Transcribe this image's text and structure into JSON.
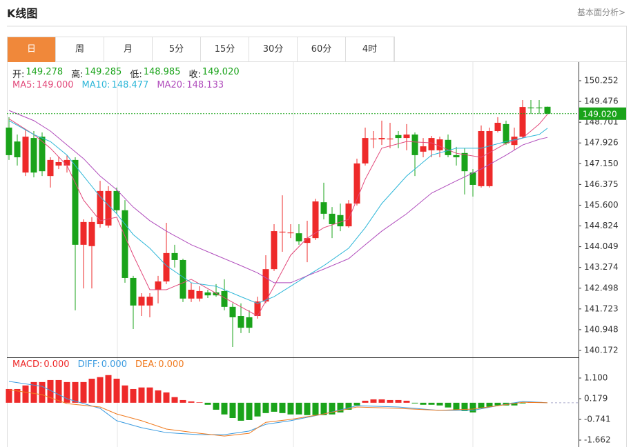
{
  "header": {
    "title": "K线图",
    "link": "基本面分析>"
  },
  "tabs": {
    "items": [
      "日",
      "周",
      "月",
      "5分",
      "15分",
      "30分",
      "60分",
      "4时"
    ],
    "selected": 0
  },
  "chart_data": [
    {
      "type": "candlestick",
      "quote": [
        {
          "label": "开:",
          "value": "149.278"
        },
        {
          "label": "高:",
          "value": "149.285"
        },
        {
          "label": "低:",
          "value": "148.985"
        },
        {
          "label": "收:",
          "value": "149.020"
        }
      ],
      "quote_color": "#1aa31a",
      "up_color": "#ee2a2a",
      "down_color": "#1aa31a",
      "last_price": "149.020",
      "last_price_color": "#1aa31a",
      "open": [
        148.5,
        147.98,
        146.82,
        148.11,
        148.16,
        146.69,
        147.08,
        147.08,
        147.29,
        144.12,
        144.07,
        144.89,
        144.84,
        146.13,
        145.41,
        142.88,
        141.85,
        141.85,
        142.44,
        142.75,
        143.81,
        143.55,
        142.11,
        142.11,
        142.34,
        142.34,
        142.39,
        141.8,
        141.46,
        141.41,
        141.46,
        142.0,
        143.21,
        144.58,
        144.55,
        144.55,
        144.19,
        144.37,
        145.71,
        145.28,
        145.23,
        144.81,
        145.66,
        147.16,
        148.06,
        148.06,
        148.06,
        148.22,
        148.11,
        148.24,
        147.6,
        147.65,
        147.65,
        148.04,
        147.47,
        147.55,
        146.82,
        146.31,
        146.31,
        148.37,
        148.63,
        147.85,
        148.16,
        149.25,
        149.25,
        149.278
      ],
      "high": [
        148.89,
        148.24,
        148.42,
        148.37,
        148.32,
        147.39,
        147.39,
        147.47,
        147.39,
        145.07,
        145.15,
        146.51,
        146.31,
        146.26,
        145.79,
        142.96,
        142.31,
        142.31,
        142.96,
        144.94,
        144.12,
        143.6,
        142.7,
        142.57,
        142.44,
        142.65,
        142.83,
        141.93,
        141.93,
        141.67,
        142.18,
        143.73,
        144.89,
        145.97,
        144.89,
        144.89,
        145.02,
        145.84,
        146.44,
        145.53,
        145.66,
        145.79,
        147.34,
        148.5,
        148.37,
        148.76,
        148.68,
        148.37,
        148.63,
        148.32,
        148.11,
        148.19,
        148.16,
        148.24,
        147.78,
        147.73,
        146.95,
        148.58,
        148.5,
        148.89,
        148.76,
        148.5,
        149.53,
        149.53,
        149.53,
        149.285
      ],
      "low": [
        147.29,
        147.08,
        146.69,
        146.64,
        146.69,
        146.26,
        146.95,
        146.82,
        141.67,
        142.49,
        142.49,
        144.76,
        144.76,
        145.28,
        142.7,
        140.97,
        141.46,
        141.41,
        141.93,
        142.65,
        143.27,
        141.98,
        141.98,
        142.0,
        142.13,
        142.18,
        141.67,
        140.3,
        140.82,
        140.82,
        141.36,
        141.93,
        143.14,
        143.86,
        144.37,
        144.12,
        143.47,
        144.3,
        145.07,
        144.37,
        144.63,
        144.76,
        145.59,
        147.08,
        147.73,
        147.85,
        147.73,
        147.73,
        147.65,
        146.69,
        147.39,
        147.39,
        147.39,
        147.39,
        147.08,
        146.0,
        145.92,
        146.26,
        146.26,
        148.32,
        147.85,
        147.65,
        148.11,
        149.01,
        149.01,
        148.985
      ],
      "close": [
        147.47,
        147.39,
        148.16,
        146.82,
        146.87,
        147.29,
        147.21,
        147.29,
        144.12,
        144.97,
        144.97,
        146.13,
        146.13,
        145.41,
        142.88,
        141.85,
        142.18,
        142.18,
        142.75,
        143.81,
        143.55,
        142.11,
        142.44,
        142.39,
        142.23,
        142.23,
        141.8,
        141.41,
        141.02,
        141.02,
        142.0,
        143.21,
        144.63,
        144.61,
        144.58,
        144.25,
        144.37,
        145.74,
        145.28,
        144.89,
        144.81,
        145.66,
        147.16,
        148.11,
        148.09,
        148.11,
        148.09,
        148.11,
        148.24,
        147.47,
        147.8,
        148.11,
        148.06,
        147.47,
        147.39,
        146.87,
        146.36,
        148.37,
        148.37,
        148.68,
        147.91,
        148.16,
        149.27,
        149.22,
        149.22,
        149.02
      ],
      "series": [
        {
          "name": "MA5:",
          "last": "149.000",
          "color": "#e2487a",
          "x": [
            0,
            3,
            5,
            7,
            9,
            11,
            13,
            15,
            17,
            19,
            22,
            25,
            28,
            30,
            32,
            34,
            36,
            38,
            41,
            43,
            45,
            48,
            51,
            54,
            57,
            60,
            62,
            64,
            65
          ],
          "values": [
            148.83,
            148.24,
            147.73,
            147.08,
            145.79,
            145.02,
            145.15,
            143.73,
            142.44,
            142.44,
            142.83,
            142.31,
            141.8,
            141.46,
            142.57,
            143.73,
            144.37,
            144.76,
            145.07,
            146.57,
            147.73,
            147.98,
            147.93,
            147.54,
            147.39,
            147.91,
            148.11,
            148.63,
            149.0
          ]
        },
        {
          "name": "MA10:",
          "last": "148.477",
          "color": "#2cb6d8",
          "x": [
            0,
            3,
            5,
            7,
            9,
            11,
            13,
            15,
            17,
            19,
            22,
            25,
            28,
            30,
            32,
            34,
            36,
            38,
            41,
            43,
            45,
            48,
            51,
            54,
            57,
            60,
            62,
            64,
            65
          ],
          "values": [
            148.76,
            148.24,
            147.98,
            147.47,
            146.69,
            145.92,
            145.28,
            144.5,
            143.99,
            143.34,
            142.7,
            142.57,
            142.18,
            141.93,
            142.18,
            142.57,
            142.96,
            143.34,
            143.99,
            144.76,
            145.66,
            146.69,
            147.47,
            147.73,
            147.73,
            147.98,
            148.11,
            148.24,
            148.477
          ]
        },
        {
          "name": "MA20:",
          "last": "148.133",
          "color": "#b04cbc",
          "x": [
            0,
            3,
            5,
            7,
            9,
            11,
            13,
            15,
            17,
            19,
            22,
            25,
            28,
            30,
            32,
            34,
            36,
            38,
            41,
            43,
            45,
            48,
            51,
            54,
            57,
            60,
            62,
            64,
            65
          ],
          "values": [
            149.14,
            148.76,
            148.37,
            147.85,
            147.34,
            146.69,
            146.18,
            145.53,
            145.02,
            144.63,
            144.12,
            143.73,
            143.34,
            143.07,
            142.7,
            142.7,
            142.96,
            143.21,
            143.6,
            144.12,
            144.63,
            145.28,
            146.05,
            146.51,
            146.95,
            147.47,
            147.85,
            148.06,
            148.133
          ]
        }
      ],
      "ylim": [
        139.914,
        150.948
      ],
      "yticks": [
        150.252,
        149.476,
        148.701,
        147.926,
        {
          "value": 147.15,
          "label": "147.150"
        },
        146.375,
        {
          "value": 145.6,
          "label": "145.600"
        },
        144.824,
        144.049,
        143.274,
        142.498,
        141.723,
        140.948,
        140.172
      ]
    },
    {
      "type": "macd",
      "up_color": "#ee2a2a",
      "down_color": "#1aa31a",
      "histogram": {
        "name": "MACD:",
        "last": "0.000",
        "color": "#ee2a2a",
        "values": [
          0.61,
          0.61,
          0.77,
          0.92,
          0.92,
          1.01,
          1.01,
          0.92,
          0.92,
          0.92,
          1.07,
          1.14,
          1.23,
          1.07,
          0.77,
          0.61,
          0.68,
          0.68,
          0.55,
          0.46,
          0.25,
          0.12,
          0.06,
          0.02,
          -0.09,
          -0.31,
          -0.52,
          -0.68,
          -0.8,
          -0.77,
          -0.61,
          -0.46,
          -0.4,
          -0.46,
          -0.52,
          -0.52,
          -0.55,
          -0.55,
          -0.55,
          -0.52,
          -0.43,
          -0.31,
          -0.12,
          0.09,
          0.15,
          0.15,
          0.12,
          0.12,
          0.09,
          -0.03,
          -0.09,
          -0.09,
          -0.12,
          -0.21,
          -0.31,
          -0.37,
          -0.43,
          -0.25,
          -0.18,
          -0.12,
          -0.12,
          -0.12,
          -0.03,
          0.03,
          0.03,
          0
        ]
      },
      "series": [
        {
          "name": "DIFF:",
          "last": "0.000",
          "color": "#3a9be0",
          "x": [
            0,
            4,
            7,
            11,
            13,
            16,
            19,
            23,
            26,
            29,
            31,
            34,
            38,
            42,
            47,
            52,
            56,
            59,
            62,
            65
          ],
          "values": [
            0.95,
            0.73,
            0.18,
            -0.25,
            -0.8,
            -1.11,
            -1.33,
            -1.42,
            -1.42,
            -1.26,
            -0.96,
            -0.8,
            -0.5,
            -0.13,
            -0.19,
            -0.34,
            -0.34,
            -0.13,
            0.06,
            0
          ]
        },
        {
          "name": "DEA:",
          "last": "0.000",
          "color": "#f07a1e",
          "x": [
            0,
            4,
            7,
            11,
            13,
            16,
            19,
            23,
            26,
            29,
            31,
            34,
            38,
            42,
            47,
            52,
            56,
            59,
            62,
            65
          ],
          "values": [
            0.58,
            0.36,
            -0.04,
            -0.19,
            -0.5,
            -0.8,
            -1.17,
            -1.36,
            -1.48,
            -1.36,
            -0.87,
            -0.74,
            -0.5,
            -0.19,
            -0.25,
            -0.34,
            -0.28,
            -0.13,
            0.02,
            0
          ]
        }
      ],
      "ylim": [
        -1.969,
        2.021
      ],
      "yticks": [
        {
          "value": 1.1,
          "label": "1.100"
        },
        0.179,
        -0.741,
        -1.662
      ]
    }
  ]
}
